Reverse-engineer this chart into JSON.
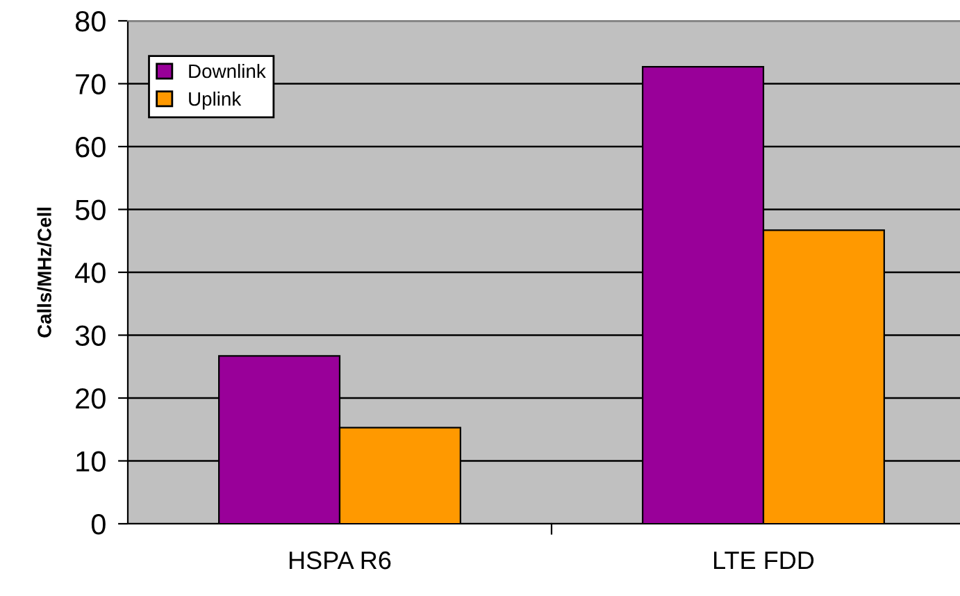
{
  "chart_data": {
    "type": "bar",
    "ylabel": "Calls/MHz/Cell",
    "categories": [
      "HSPA R6",
      "LTE FDD"
    ],
    "series": [
      {
        "name": "Downlink",
        "color": "#990099",
        "values": [
          26.7,
          72.7
        ]
      },
      {
        "name": "Uplink",
        "color": "#ff9900",
        "values": [
          15.3,
          46.7
        ]
      }
    ],
    "ylim": [
      0,
      80
    ],
    "yticks": [
      0,
      10,
      20,
      30,
      40,
      50,
      60,
      70,
      80
    ],
    "grid": "y",
    "legend": "top left"
  }
}
